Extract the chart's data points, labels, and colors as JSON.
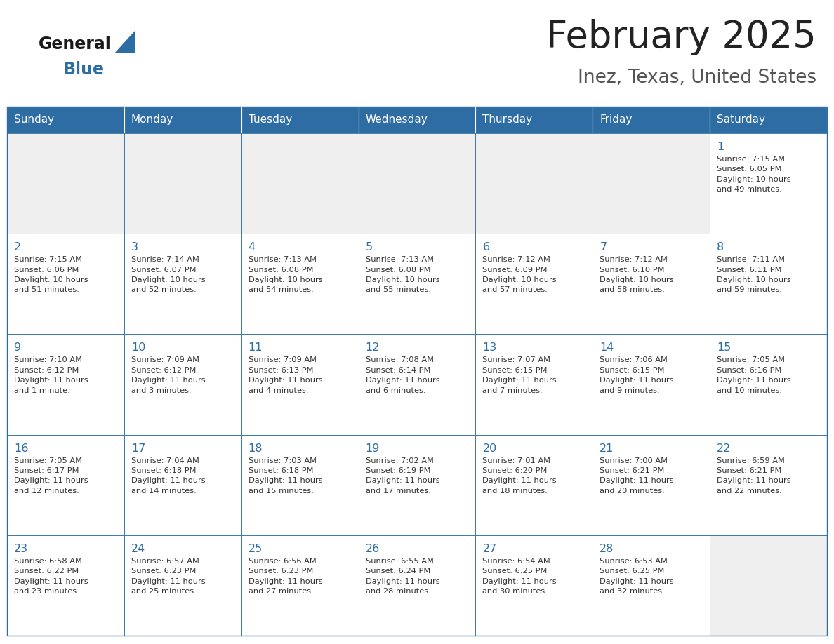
{
  "title": "February 2025",
  "subtitle": "Inez, Texas, United States",
  "days_of_week": [
    "Sunday",
    "Monday",
    "Tuesday",
    "Wednesday",
    "Thursday",
    "Friday",
    "Saturday"
  ],
  "header_bg": "#2E6DA4",
  "header_text_color": "#FFFFFF",
  "cell_border_color": "#2E6DA4",
  "title_color": "#222222",
  "subtitle_color": "#555555",
  "day_num_color": "#2E6DA4",
  "cell_text_color": "#333333",
  "logo_general_color": "#1a1a1a",
  "logo_blue_color": "#2E6DA4",
  "logo_triangle_color": "#2E6DA4",
  "cell_empty_bg": "#EFEFEF",
  "cell_filled_bg": "#FFFFFF",
  "weeks": [
    [
      {
        "day": null,
        "info": null
      },
      {
        "day": null,
        "info": null
      },
      {
        "day": null,
        "info": null
      },
      {
        "day": null,
        "info": null
      },
      {
        "day": null,
        "info": null
      },
      {
        "day": null,
        "info": null
      },
      {
        "day": 1,
        "info": "Sunrise: 7:15 AM\nSunset: 6:05 PM\nDaylight: 10 hours\nand 49 minutes."
      }
    ],
    [
      {
        "day": 2,
        "info": "Sunrise: 7:15 AM\nSunset: 6:06 PM\nDaylight: 10 hours\nand 51 minutes."
      },
      {
        "day": 3,
        "info": "Sunrise: 7:14 AM\nSunset: 6:07 PM\nDaylight: 10 hours\nand 52 minutes."
      },
      {
        "day": 4,
        "info": "Sunrise: 7:13 AM\nSunset: 6:08 PM\nDaylight: 10 hours\nand 54 minutes."
      },
      {
        "day": 5,
        "info": "Sunrise: 7:13 AM\nSunset: 6:08 PM\nDaylight: 10 hours\nand 55 minutes."
      },
      {
        "day": 6,
        "info": "Sunrise: 7:12 AM\nSunset: 6:09 PM\nDaylight: 10 hours\nand 57 minutes."
      },
      {
        "day": 7,
        "info": "Sunrise: 7:12 AM\nSunset: 6:10 PM\nDaylight: 10 hours\nand 58 minutes."
      },
      {
        "day": 8,
        "info": "Sunrise: 7:11 AM\nSunset: 6:11 PM\nDaylight: 10 hours\nand 59 minutes."
      }
    ],
    [
      {
        "day": 9,
        "info": "Sunrise: 7:10 AM\nSunset: 6:12 PM\nDaylight: 11 hours\nand 1 minute."
      },
      {
        "day": 10,
        "info": "Sunrise: 7:09 AM\nSunset: 6:12 PM\nDaylight: 11 hours\nand 3 minutes."
      },
      {
        "day": 11,
        "info": "Sunrise: 7:09 AM\nSunset: 6:13 PM\nDaylight: 11 hours\nand 4 minutes."
      },
      {
        "day": 12,
        "info": "Sunrise: 7:08 AM\nSunset: 6:14 PM\nDaylight: 11 hours\nand 6 minutes."
      },
      {
        "day": 13,
        "info": "Sunrise: 7:07 AM\nSunset: 6:15 PM\nDaylight: 11 hours\nand 7 minutes."
      },
      {
        "day": 14,
        "info": "Sunrise: 7:06 AM\nSunset: 6:15 PM\nDaylight: 11 hours\nand 9 minutes."
      },
      {
        "day": 15,
        "info": "Sunrise: 7:05 AM\nSunset: 6:16 PM\nDaylight: 11 hours\nand 10 minutes."
      }
    ],
    [
      {
        "day": 16,
        "info": "Sunrise: 7:05 AM\nSunset: 6:17 PM\nDaylight: 11 hours\nand 12 minutes."
      },
      {
        "day": 17,
        "info": "Sunrise: 7:04 AM\nSunset: 6:18 PM\nDaylight: 11 hours\nand 14 minutes."
      },
      {
        "day": 18,
        "info": "Sunrise: 7:03 AM\nSunset: 6:18 PM\nDaylight: 11 hours\nand 15 minutes."
      },
      {
        "day": 19,
        "info": "Sunrise: 7:02 AM\nSunset: 6:19 PM\nDaylight: 11 hours\nand 17 minutes."
      },
      {
        "day": 20,
        "info": "Sunrise: 7:01 AM\nSunset: 6:20 PM\nDaylight: 11 hours\nand 18 minutes."
      },
      {
        "day": 21,
        "info": "Sunrise: 7:00 AM\nSunset: 6:21 PM\nDaylight: 11 hours\nand 20 minutes."
      },
      {
        "day": 22,
        "info": "Sunrise: 6:59 AM\nSunset: 6:21 PM\nDaylight: 11 hours\nand 22 minutes."
      }
    ],
    [
      {
        "day": 23,
        "info": "Sunrise: 6:58 AM\nSunset: 6:22 PM\nDaylight: 11 hours\nand 23 minutes."
      },
      {
        "day": 24,
        "info": "Sunrise: 6:57 AM\nSunset: 6:23 PM\nDaylight: 11 hours\nand 25 minutes."
      },
      {
        "day": 25,
        "info": "Sunrise: 6:56 AM\nSunset: 6:23 PM\nDaylight: 11 hours\nand 27 minutes."
      },
      {
        "day": 26,
        "info": "Sunrise: 6:55 AM\nSunset: 6:24 PM\nDaylight: 11 hours\nand 28 minutes."
      },
      {
        "day": 27,
        "info": "Sunrise: 6:54 AM\nSunset: 6:25 PM\nDaylight: 11 hours\nand 30 minutes."
      },
      {
        "day": 28,
        "info": "Sunrise: 6:53 AM\nSunset: 6:25 PM\nDaylight: 11 hours\nand 32 minutes."
      },
      {
        "day": null,
        "info": null
      }
    ]
  ]
}
